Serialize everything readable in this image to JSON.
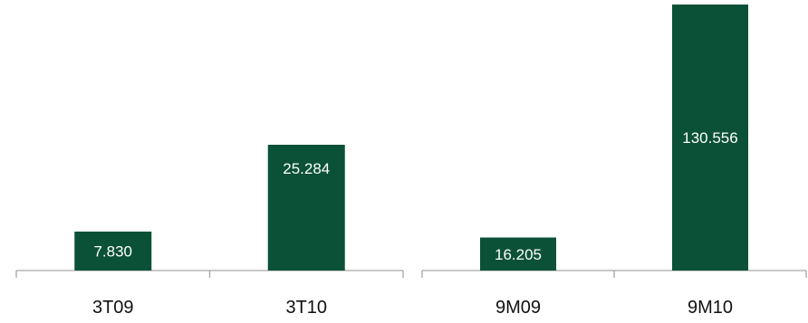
{
  "chart_data": [
    {
      "type": "bar",
      "categories": [
        "3T09",
        "3T10"
      ],
      "values": [
        7.83,
        25.284
      ],
      "value_labels": [
        "7.830",
        "25.284"
      ],
      "title": "",
      "xlabel": "",
      "ylabel": "",
      "grid": false,
      "bar_color": "#0b5137"
    },
    {
      "type": "bar",
      "categories": [
        "9M09",
        "9M10"
      ],
      "values": [
        16.205,
        130.556
      ],
      "value_labels": [
        "16.205",
        "130.556"
      ],
      "title": "",
      "xlabel": "",
      "ylabel": "",
      "grid": false,
      "bar_color": "#0b5137"
    }
  ],
  "colors": {
    "bar": "#0b5137",
    "axis": "#a6a6a6"
  }
}
